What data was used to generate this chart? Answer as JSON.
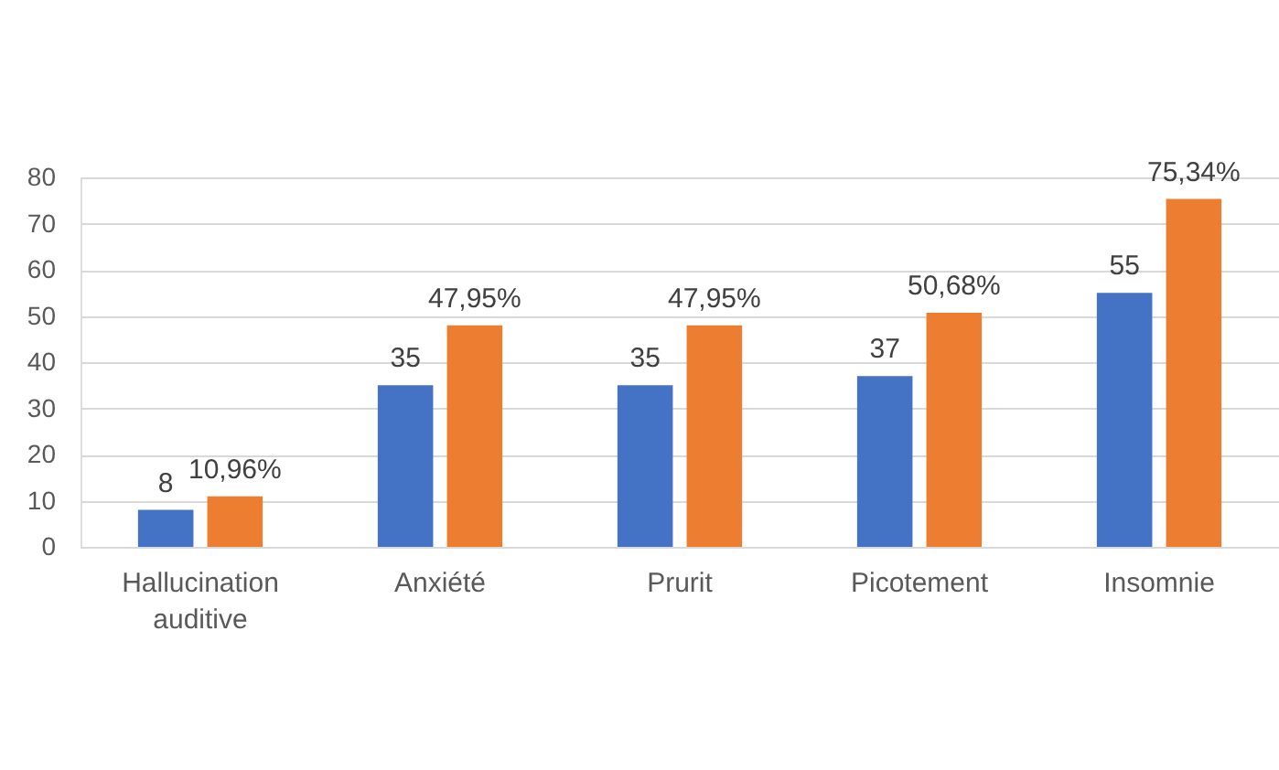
{
  "chart_data": {
    "type": "bar",
    "categories": [
      "Hallucination auditive",
      "Anxiété",
      "Prurit",
      "Picotement",
      "Insomnie"
    ],
    "series": [
      {
        "color": "#4472c4",
        "values": [
          8,
          35,
          35,
          37,
          55
        ],
        "value_labels": [
          "8",
          "35",
          "35",
          "37",
          "55"
        ]
      },
      {
        "color": "#ed7d31",
        "values": [
          10.96,
          47.95,
          47.95,
          50.68,
          75.34
        ],
        "value_labels": [
          "10,96%",
          "47,95%",
          "47,95%",
          "50,68%",
          "75,34%"
        ]
      }
    ],
    "ylim": [
      0,
      80
    ],
    "yticks": [
      0,
      10,
      20,
      30,
      40,
      50,
      60,
      70,
      80
    ],
    "grid": "y"
  }
}
